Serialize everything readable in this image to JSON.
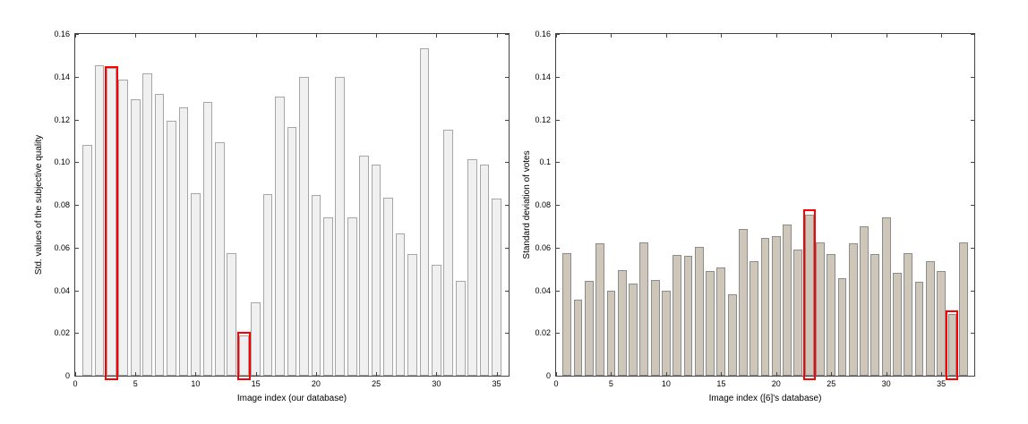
{
  "figure": {
    "background": "#ffffff",
    "axis_color": "#444444"
  },
  "chart_data": [
    {
      "type": "bar",
      "title": "",
      "xlabel": "Image index (our database)",
      "ylabel": "Std. values of the subjective quality",
      "xlim": [
        0,
        36
      ],
      "ylim": [
        0,
        0.16
      ],
      "grid": false,
      "legend": null,
      "bar_color": "#f0f0f0",
      "bar_edge_color": "#a6a6a6",
      "highlight_color": "#ff0000",
      "x_ticks": [
        0,
        5,
        10,
        15,
        20,
        25,
        30,
        35
      ],
      "x_tick_labels": [
        "0",
        "5",
        "10",
        "15",
        "20",
        "25",
        "30",
        "35"
      ],
      "y_ticks": [
        0,
        0.02,
        0.04,
        0.06,
        0.08,
        0.1,
        0.12,
        0.14,
        0.16
      ],
      "y_tick_labels": [
        "0",
        "0.02",
        "0.04",
        "0.06",
        "0.08",
        "0.10",
        "0.12",
        "0.14",
        "0.16"
      ],
      "x": [
        1,
        2,
        3,
        4,
        5,
        6,
        7,
        8,
        9,
        10,
        11,
        12,
        13,
        14,
        15,
        16,
        17,
        18,
        19,
        20,
        21,
        22,
        23,
        24,
        25,
        26,
        27,
        28,
        29,
        30,
        31,
        32,
        33,
        34,
        35
      ],
      "values": [
        0.108,
        0.1455,
        0.144,
        0.1385,
        0.1295,
        0.1415,
        0.132,
        0.1195,
        0.1255,
        0.0855,
        0.128,
        0.1095,
        0.0575,
        0.019,
        0.0345,
        0.085,
        0.1305,
        0.1165,
        0.14,
        0.0845,
        0.074,
        0.14,
        0.074,
        0.103,
        0.099,
        0.0835,
        0.0665,
        0.057,
        0.1535,
        0.052,
        0.115,
        0.0445,
        0.1015,
        0.099,
        0.083
      ],
      "highlights": [
        {
          "index": 3,
          "top": 0.145
        },
        {
          "index": 14,
          "top": 0.0205
        }
      ]
    },
    {
      "type": "bar",
      "title": "",
      "xlabel": "Image index ([6]'s database)",
      "ylabel": "Standard deviation of votes",
      "xlim": [
        0,
        38
      ],
      "ylim": [
        0,
        0.16
      ],
      "grid": false,
      "legend": null,
      "bar_color": "#cdc6b9",
      "bar_edge_color": "#8c8c8c",
      "highlight_color": "#ff0000",
      "x_ticks": [
        0,
        5,
        10,
        15,
        20,
        25,
        30,
        35
      ],
      "x_tick_labels": [
        "0",
        "5",
        "10",
        "15",
        "20",
        "25",
        "30",
        "35"
      ],
      "y_ticks": [
        0,
        0.02,
        0.04,
        0.06,
        0.08,
        0.1,
        0.12,
        0.14,
        0.16
      ],
      "y_tick_labels": [
        "0",
        "0.02",
        "0.04",
        "0.06",
        "0.08",
        "0.1",
        "0.12",
        "0.14",
        "0.16"
      ],
      "x": [
        1,
        2,
        3,
        4,
        5,
        6,
        7,
        8,
        9,
        10,
        11,
        12,
        13,
        14,
        15,
        16,
        17,
        18,
        19,
        20,
        21,
        22,
        23,
        24,
        25,
        26,
        27,
        28,
        29,
        30,
        31,
        32,
        33,
        34,
        35,
        36,
        37
      ],
      "values": [
        0.0575,
        0.0355,
        0.0445,
        0.062,
        0.04,
        0.0495,
        0.043,
        0.0625,
        0.045,
        0.04,
        0.0565,
        0.056,
        0.0605,
        0.049,
        0.0505,
        0.038,
        0.0685,
        0.0535,
        0.0645,
        0.0655,
        0.071,
        0.059,
        0.0755,
        0.0625,
        0.057,
        0.0455,
        0.062,
        0.07,
        0.057,
        0.074,
        0.048,
        0.0575,
        0.044,
        0.0535,
        0.049,
        0.029,
        0.0625
      ],
      "highlights": [
        {
          "index": 23,
          "top": 0.078
        },
        {
          "index": 36,
          "top": 0.0305
        }
      ]
    }
  ]
}
